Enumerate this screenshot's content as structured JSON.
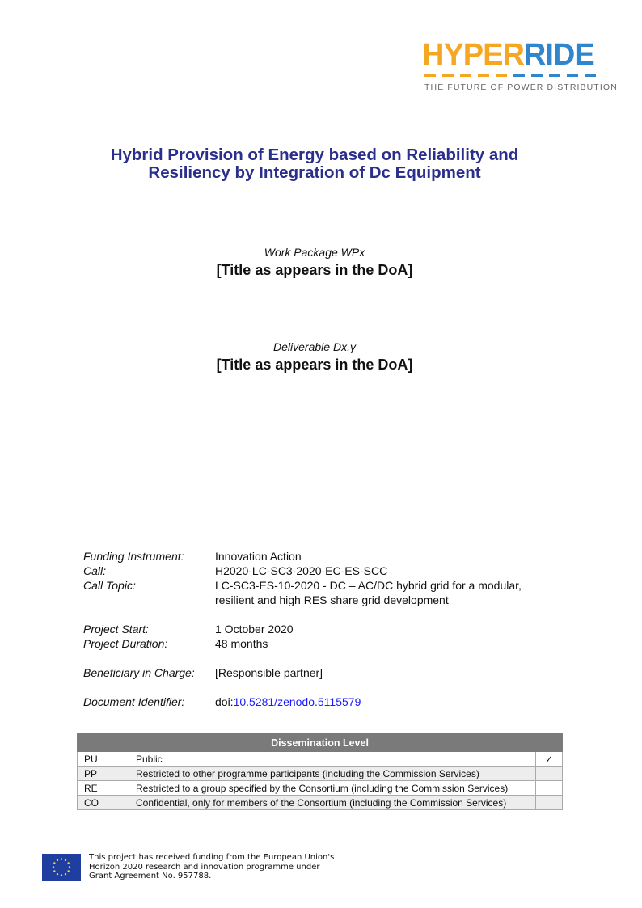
{
  "logo": {
    "word_orange": "HYPER",
    "word_blue": "RIDE",
    "tagline": "THE FUTURE OF POWER DISTRIBUTION",
    "colors": {
      "orange": "#f5a623",
      "blue": "#2f86cc"
    }
  },
  "title": {
    "line1": "Hybrid Provision of Energy based on Reliability and",
    "line2": "Resiliency by Integration of Dc Equipment",
    "color": "#2b2f8c"
  },
  "work_package": {
    "label": "Work Package WPx",
    "title": "[Title as appears in the DoA]"
  },
  "deliverable": {
    "label": "Deliverable Dx.y",
    "title": "[Title as appears in the DoA]"
  },
  "meta": {
    "funding_label": "Funding Instrument:",
    "funding": "Innovation Action",
    "call_label": "Call:",
    "call": "H2020-LC-SC3-2020-EC-ES-SCC",
    "topic_label": "Call Topic:",
    "topic_line1": "LC-SC3-ES-10-2020 - DC – AC/DC hybrid grid for a modular,",
    "topic_line2": "resilient and high RES share grid development",
    "start_label": "Project Start:",
    "start": "1 October 2020",
    "duration_label": "Project Duration:",
    "duration": "48 months",
    "beneficiary_label": "Beneficiary in Charge:",
    "beneficiary": "[Responsible partner]",
    "docid_label": "Document Identifier:",
    "docid_prefix": "doi:",
    "docid_link": "10.5281/zenodo.5115579"
  },
  "dissemination": {
    "header": "Dissemination Level",
    "rows": [
      {
        "code": "PU",
        "desc": "Public",
        "mark": "✓"
      },
      {
        "code": "PP",
        "desc": "Restricted to other programme participants (including the Commission Services)",
        "mark": ""
      },
      {
        "code": "RE",
        "desc": "Restricted to a group specified by the Consortium (including the Commission Services)",
        "mark": ""
      },
      {
        "code": "CO",
        "desc": "Confidential, only for members of the Consortium (including the Commission Services)",
        "mark": ""
      }
    ]
  },
  "footer": {
    "line1": "This project has received funding from the European Union's",
    "line2": "Horizon 2020 research and innovation programme under",
    "line3": "Grant Agreement No. 957788."
  }
}
